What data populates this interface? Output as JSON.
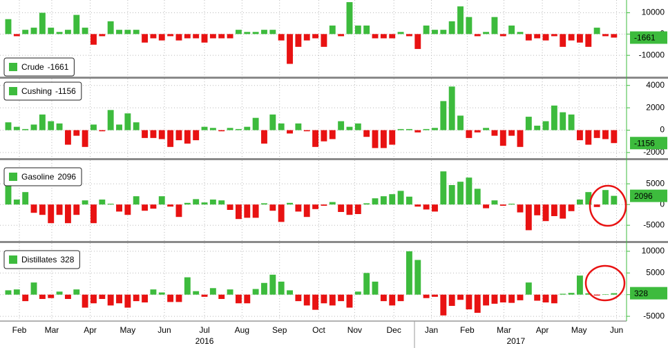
{
  "chart_data": [
    {
      "type": "bar",
      "series": [
        {
          "name": "Crude",
          "positive_color": "#3dbb3d",
          "negative_color": "#e81212",
          "values": [
            7000,
            -1000,
            2000,
            3000,
            10000,
            3000,
            1000,
            2000,
            9000,
            3000,
            -5000,
            -1000,
            6000,
            2000,
            2000,
            2000,
            -4000,
            -2000,
            -3000,
            -1000,
            -3000,
            -2000,
            -2000,
            -4000,
            -2000,
            -2000,
            -2000,
            2000,
            1000,
            1000,
            2000,
            2000,
            -3000,
            -14000,
            -6000,
            -3000,
            -2000,
            -6000,
            4000,
            -1000,
            15000,
            4000,
            4000,
            -2000,
            -2000,
            -2000,
            1000,
            -1000,
            -7000,
            4000,
            2000,
            2000,
            6000,
            13000,
            8000,
            -1000,
            1000,
            8000,
            -1000,
            4000,
            1000,
            -3000,
            -2000,
            -3000,
            -1000,
            -6000,
            -3000,
            -4000,
            -6000,
            3000,
            -1000,
            -1661
          ]
        }
      ],
      "xlim": [
        0,
        72
      ],
      "ylim": [
        -20000,
        16000
      ],
      "yticks": [
        10000,
        0,
        -10000
      ],
      "grid": true
    },
    {
      "type": "bar",
      "series": [
        {
          "name": "Cushing",
          "positive_color": "#3dbb3d",
          "negative_color": "#e81212",
          "values": [
            700,
            300,
            100,
            500,
            1400,
            800,
            600,
            -1300,
            -500,
            -1500,
            500,
            -100,
            1800,
            500,
            1500,
            700,
            -700,
            -700,
            -800,
            -1500,
            -900,
            -1200,
            -900,
            300,
            200,
            -100,
            200,
            100,
            300,
            1100,
            -1200,
            1400,
            600,
            -300,
            600,
            -100,
            -1500,
            -1000,
            -800,
            800,
            300,
            600,
            -600,
            -1600,
            -1600,
            -1300,
            100,
            100,
            -200,
            100,
            200,
            2600,
            3900,
            1300,
            -700,
            -200,
            200,
            -500,
            -1400,
            -500,
            -1500,
            1200,
            400,
            800,
            2200,
            1600,
            1400,
            -900,
            -1300,
            -700,
            -800,
            -1156
          ]
        }
      ],
      "xlim": [
        0,
        72
      ],
      "ylim": [
        -2500,
        4600
      ],
      "yticks": [
        4000,
        2000,
        0,
        -2000
      ],
      "grid": true
    },
    {
      "type": "bar",
      "series": [
        {
          "name": "Gasoline",
          "positive_color": "#3dbb3d",
          "negative_color": "#e81212",
          "values": [
            6500,
            1200,
            3000,
            -2000,
            -2500,
            -4500,
            -2500,
            -4500,
            -2500,
            1000,
            -4500,
            1200,
            200,
            -1700,
            -2500,
            2000,
            -1500,
            -1000,
            2000,
            -500,
            -3000,
            400,
            1300,
            500,
            1200,
            1000,
            -1300,
            -3500,
            -3200,
            -3200,
            300,
            -1500,
            -4200,
            400,
            -1700,
            -3000,
            -1100,
            -300,
            600,
            -1800,
            -2500,
            -2300,
            300,
            1500,
            2000,
            2500,
            3300,
            1900,
            -500,
            -1200,
            -1700,
            8000,
            4700,
            5500,
            6500,
            3800,
            -900,
            1000,
            -300,
            200,
            -1900,
            -6200,
            -2600,
            -4000,
            -2800,
            -3400,
            -1600,
            1200,
            3000,
            -600,
            3500,
            2096
          ]
        }
      ],
      "xlim": [
        0,
        72
      ],
      "ylim": [
        -8800,
        10700
      ],
      "yticks": [
        5000,
        0,
        -5000
      ],
      "grid": true
    },
    {
      "type": "bar",
      "series": [
        {
          "name": "Distillates",
          "positive_color": "#3dbb3d",
          "negative_color": "#e81212",
          "values": [
            1000,
            1200,
            -1500,
            2800,
            -1000,
            -800,
            700,
            -1000,
            1200,
            -3000,
            -2000,
            -1000,
            -2500,
            -2000,
            -3000,
            -1500,
            -1800,
            1200,
            500,
            -1700,
            -1700,
            4000,
            800,
            -500,
            1500,
            -1000,
            1200,
            -2000,
            -2000,
            1300,
            2700,
            4600,
            3000,
            1000,
            -1500,
            -2500,
            -3500,
            -2000,
            -2500,
            -1500,
            -3000,
            700,
            5000,
            3000,
            -1500,
            -2500,
            -1500,
            10000,
            8000,
            -800,
            -500,
            -4800,
            -2600,
            -1200,
            -3400,
            -4200,
            -2500,
            -2100,
            -1800,
            -1900,
            -1300,
            2800,
            -1400,
            -1800,
            -2000,
            200,
            400,
            4400,
            300,
            -200,
            100,
            328
          ]
        }
      ],
      "xlim": [
        0,
        72
      ],
      "ylim": [
        -6100,
        11900
      ],
      "yticks": [
        10000,
        5000,
        0,
        -5000
      ],
      "grid": true,
      "xticks": [
        {
          "value": 1.8,
          "label": "Feb"
        },
        {
          "value": 5.6,
          "label": "Mar"
        },
        {
          "value": 10.1,
          "label": "Apr"
        },
        {
          "value": 14.5,
          "label": "May"
        },
        {
          "value": 18.8,
          "label": "Jun"
        },
        {
          "value": 23.5,
          "label": "Jul"
        },
        {
          "value": 27.9,
          "label": "Aug"
        },
        {
          "value": 32.3,
          "label": "Sep"
        },
        {
          "value": 36.9,
          "label": "Oct"
        },
        {
          "value": 41.1,
          "label": "Nov"
        },
        {
          "value": 45.7,
          "label": "Dec"
        },
        {
          "value": 50.1,
          "label": "Jan"
        },
        {
          "value": 54.3,
          "label": "Feb"
        },
        {
          "value": 58.6,
          "label": "Mar"
        },
        {
          "value": 63.1,
          "label": "Apr"
        },
        {
          "value": 67.4,
          "label": "May"
        },
        {
          "value": 71.8,
          "label": "Jun"
        }
      ],
      "year_ticks": [
        {
          "value": 23.5,
          "label": "2016"
        },
        {
          "value": 60,
          "label": "2017"
        }
      ]
    }
  ]
}
